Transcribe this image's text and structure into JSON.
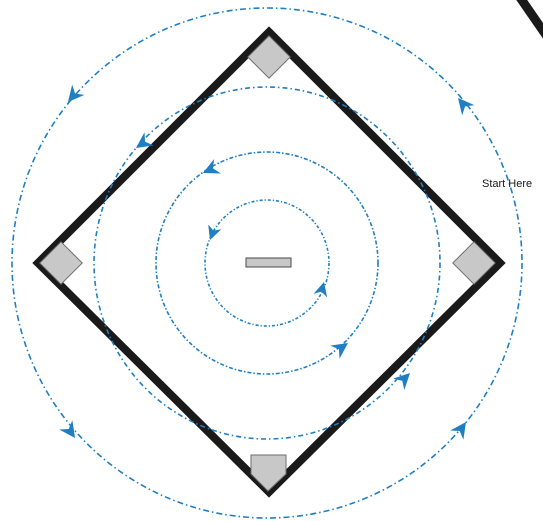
{
  "start_label": "Start Here",
  "colors": {
    "path": "#1f7fc2",
    "base_plate": "#c8c8c8",
    "base_outline": "#6e6e6e",
    "infield_line": "#1a1a1a",
    "background": "#ffffff"
  },
  "elements": {
    "bases": [
      "second-base",
      "first-base",
      "third-base",
      "home-plate"
    ],
    "center": "pitcher-rubber",
    "paths": [
      "outer-loop",
      "middle-loop",
      "inner-loop",
      "innermost-loop"
    ],
    "direction": "counterclockwise"
  }
}
